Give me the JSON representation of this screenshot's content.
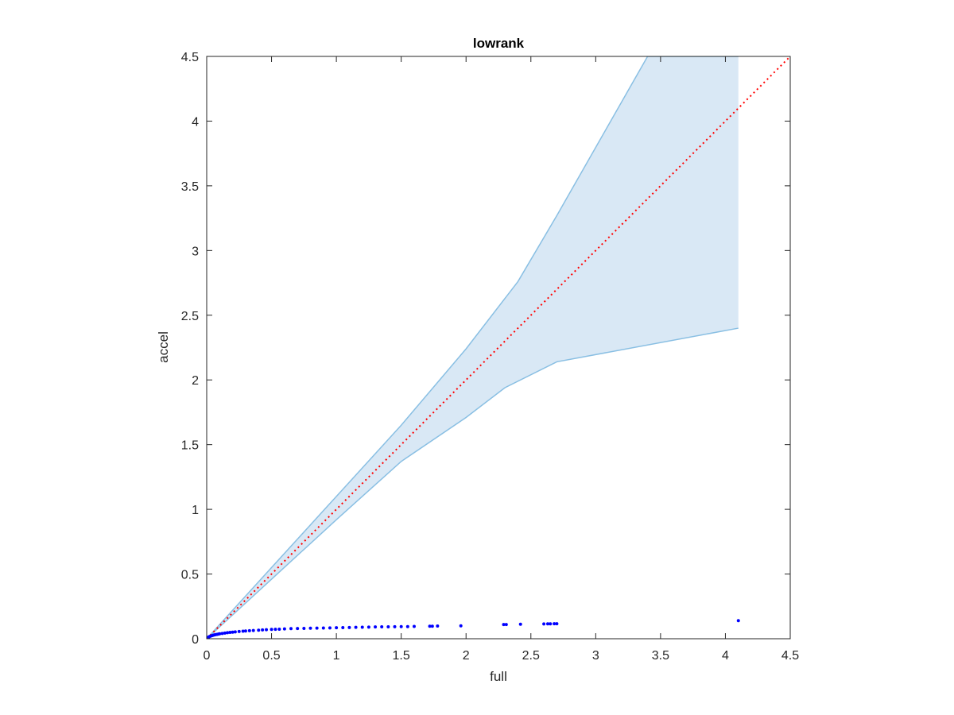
{
  "chart_data": {
    "type": "scatter",
    "title": "lowrank",
    "xlabel": "full",
    "ylabel": "accel",
    "xlim": [
      0,
      4.5
    ],
    "ylim": [
      0,
      4.5
    ],
    "xticks": [
      "0",
      "0.5",
      "1",
      "1.5",
      "2",
      "2.5",
      "3",
      "3.5",
      "4",
      "4.5"
    ],
    "yticks": [
      "0",
      "0.5",
      "1",
      "1.5",
      "2",
      "2.5",
      "3",
      "3.5",
      "4",
      "4.5"
    ],
    "grid": false,
    "box": true,
    "colors": {
      "points": "#0000ff",
      "reference_line": "#ff0000",
      "band_fill": "#d9e8f5",
      "band_edge": "#89bfe3",
      "axis": "#262626"
    },
    "band": {
      "upper": [
        [
          0,
          0
        ],
        [
          0.5,
          0.55
        ],
        [
          1,
          1.1
        ],
        [
          1.5,
          1.65
        ],
        [
          2,
          2.24
        ],
        [
          2.4,
          2.76
        ],
        [
          2.7,
          3.27
        ],
        [
          3.4,
          4.5
        ],
        [
          4.1,
          4.5
        ]
      ],
      "lower": [
        [
          0,
          0
        ],
        [
          0.5,
          0.46
        ],
        [
          1,
          0.92
        ],
        [
          1.5,
          1.37
        ],
        [
          2,
          1.71
        ],
        [
          2.3,
          1.94
        ],
        [
          2.7,
          2.14
        ],
        [
          4.1,
          2.4
        ]
      ]
    },
    "reference_line": {
      "style": "dotted",
      "x": [
        0,
        4.5
      ],
      "y": [
        0,
        4.5
      ]
    },
    "series": [
      {
        "x": [
          0.001,
          0.003,
          0.006,
          0.01,
          0.015,
          0.02,
          0.03,
          0.04,
          0.05,
          0.06,
          0.07,
          0.08,
          0.09,
          0.1,
          0.12,
          0.14,
          0.16,
          0.18,
          0.2,
          0.22,
          0.25,
          0.28,
          0.3,
          0.33,
          0.36,
          0.4,
          0.43,
          0.46,
          0.5,
          0.53,
          0.56,
          0.6,
          0.65,
          0.7,
          0.75,
          0.8,
          0.85,
          0.9,
          0.95,
          1.0,
          1.05,
          1.1,
          1.15,
          1.2,
          1.25,
          1.3,
          1.35,
          1.4,
          1.45,
          1.5,
          1.55,
          1.6,
          1.72,
          1.74,
          1.78,
          1.96,
          2.29,
          2.31,
          2.42,
          2.6,
          2.63,
          2.65,
          2.68,
          2.7,
          4.1
        ],
        "y": [
          0.002,
          0.004,
          0.007,
          0.01,
          0.013,
          0.016,
          0.02,
          0.024,
          0.027,
          0.03,
          0.032,
          0.034,
          0.036,
          0.038,
          0.041,
          0.044,
          0.047,
          0.049,
          0.051,
          0.053,
          0.056,
          0.058,
          0.06,
          0.062,
          0.064,
          0.066,
          0.068,
          0.07,
          0.072,
          0.073,
          0.074,
          0.076,
          0.078,
          0.079,
          0.08,
          0.081,
          0.082,
          0.083,
          0.084,
          0.085,
          0.086,
          0.087,
          0.088,
          0.089,
          0.09,
          0.091,
          0.092,
          0.092,
          0.093,
          0.094,
          0.094,
          0.095,
          0.097,
          0.097,
          0.098,
          0.1,
          0.11,
          0.11,
          0.112,
          0.114,
          0.115,
          0.115,
          0.116,
          0.116,
          0.14
        ]
      }
    ]
  }
}
